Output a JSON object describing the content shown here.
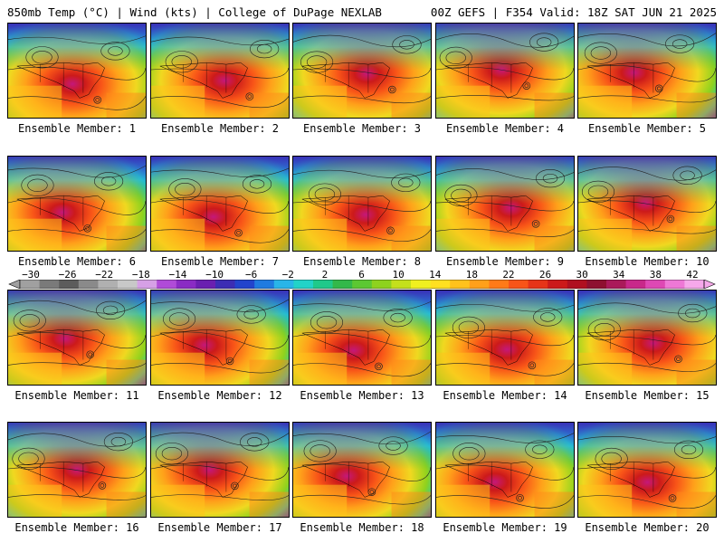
{
  "header": {
    "left_title": "850mb Temp (°C) | Wind (kts) | College of DuPage NEXLAB",
    "right_title": "00Z GEFS | F354 Valid: 18Z SAT JUN 21 2025"
  },
  "members": [
    {
      "label": "Ensemble Member: 1"
    },
    {
      "label": "Ensemble Member: 2"
    },
    {
      "label": "Ensemble Member: 3"
    },
    {
      "label": "Ensemble Member: 4"
    },
    {
      "label": "Ensemble Member: 5"
    },
    {
      "label": "Ensemble Member: 6"
    },
    {
      "label": "Ensemble Member: 7"
    },
    {
      "label": "Ensemble Member: 8"
    },
    {
      "label": "Ensemble Member: 9"
    },
    {
      "label": "Ensemble Member: 10"
    },
    {
      "label": "Ensemble Member: 11"
    },
    {
      "label": "Ensemble Member: 12"
    },
    {
      "label": "Ensemble Member: 13"
    },
    {
      "label": "Ensemble Member: 14"
    },
    {
      "label": "Ensemble Member: 15"
    },
    {
      "label": "Ensemble Member: 16"
    },
    {
      "label": "Ensemble Member: 17"
    },
    {
      "label": "Ensemble Member: 18"
    },
    {
      "label": "Ensemble Member: 19"
    },
    {
      "label": "Ensemble Member: 20"
    }
  ],
  "colorbar": {
    "ticks": [
      "−30",
      "−26",
      "−22",
      "−18",
      "−14",
      "−10",
      "−6",
      "−2",
      "2",
      "6",
      "10",
      "14",
      "18",
      "22",
      "26",
      "30",
      "34",
      "38",
      "42"
    ],
    "colors": [
      "#a0a0a0",
      "#7a7a7a",
      "#5c5c5c",
      "#8a8a8a",
      "#b0b0b0",
      "#c8c8c8",
      "#d6a0e6",
      "#b04bd8",
      "#8a2bc4",
      "#6a1fb0",
      "#3c2db4",
      "#2244cc",
      "#1f7be0",
      "#29b5e8",
      "#22d3c8",
      "#20c98a",
      "#33b84a",
      "#5cc832",
      "#8ed21e",
      "#c4e01c",
      "#f0f020",
      "#ffe020",
      "#ffc21c",
      "#ffa01a",
      "#ff7a18",
      "#f85418",
      "#e63418",
      "#cc1a1a",
      "#b01020",
      "#8e1030",
      "#aa1a5a",
      "#c8288a",
      "#de48b4",
      "#ee78d6",
      "#f6a8ea"
    ]
  }
}
